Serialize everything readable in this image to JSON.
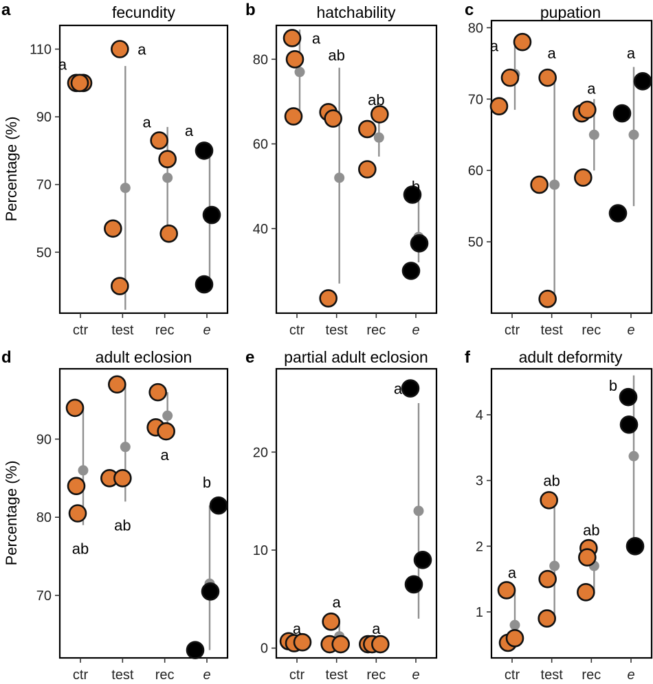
{
  "colors": {
    "point": "#E07A33",
    "exposed": "#000000",
    "mean": "#909090",
    "range": "#909090",
    "outline": "#111111"
  },
  "chart_data": [
    {
      "id": "a",
      "letter": "a",
      "title": "fecundity",
      "type": "scatter",
      "ylabel": "Percentage (%)",
      "ylim": [
        32,
        117
      ],
      "yticks": [
        50,
        70,
        90,
        110
      ],
      "categories": [
        "ctr",
        "test",
        "rec",
        "e"
      ],
      "groups": [
        {
          "category": "ctr",
          "points": [
            100,
            100,
            100
          ],
          "mean": 100,
          "range": [
            100,
            100
          ],
          "sig": "a",
          "sig_y": 105.5,
          "sig_side": "left"
        },
        {
          "category": "test",
          "points": [
            110,
            57,
            40
          ],
          "mean": 69,
          "range": [
            33,
            105
          ],
          "sig": "a",
          "sig_y": 110,
          "sig_side": "right"
        },
        {
          "category": "rec",
          "points": [
            83,
            77.5,
            55.5
          ],
          "mean": 72,
          "range": [
            57,
            87
          ],
          "sig": "a",
          "sig_y": 88.5,
          "sig_side": "left"
        },
        {
          "category": "e",
          "points": [
            80,
            61,
            40.5
          ],
          "mean": 60.5,
          "range": [
            40,
            80
          ],
          "sig": "a",
          "sig_y": 86,
          "sig_side": "left"
        }
      ]
    },
    {
      "id": "b",
      "letter": "b",
      "title": "hatchability",
      "type": "scatter",
      "ylabel": "",
      "ylim": [
        20,
        88
      ],
      "yticks": [
        40,
        60,
        80
      ],
      "categories": [
        "ctr",
        "test",
        "rec",
        "e"
      ],
      "groups": [
        {
          "category": "ctr",
          "points": [
            85,
            80,
            66.5
          ],
          "mean": 77,
          "range": [
            67,
            87
          ],
          "sig": "a",
          "sig_y": 85,
          "sig_side": "right"
        },
        {
          "category": "test",
          "points": [
            67.5,
            66,
            23.5
          ],
          "mean": 52,
          "range": [
            27,
            78
          ],
          "sig": "ab",
          "sig_y": 81,
          "sig_side": "center"
        },
        {
          "category": "rec",
          "points": [
            63.5,
            67,
            54
          ],
          "mean": 61.5,
          "range": [
            57,
            66
          ],
          "sig": "ab",
          "sig_y": 70.5,
          "sig_side": "center"
        },
        {
          "category": "e",
          "points": [
            48,
            36.5,
            30
          ],
          "mean": 38,
          "range": [
            32,
            47
          ],
          "sig": "b",
          "sig_y": 50,
          "sig_side": "center"
        }
      ]
    },
    {
      "id": "c",
      "letter": "c",
      "title": "pupation",
      "type": "scatter",
      "ylabel": "",
      "ylim": [
        40,
        81
      ],
      "yticks": [
        50,
        60,
        70,
        80
      ],
      "categories": [
        "ctr",
        "test",
        "rec",
        "e"
      ],
      "groups": [
        {
          "category": "ctr",
          "points": [
            69,
            73,
            78
          ],
          "mean": 73.5,
          "range": [
            68.5,
            78.5
          ],
          "sig": "a",
          "sig_y": 77.5,
          "sig_side": "left"
        },
        {
          "category": "test",
          "points": [
            73,
            58,
            42
          ],
          "mean": 58,
          "range": [
            42,
            73
          ],
          "sig": "a",
          "sig_y": 76.5,
          "sig_side": "center"
        },
        {
          "category": "rec",
          "points": [
            68,
            68.5,
            59
          ],
          "mean": 65,
          "range": [
            60,
            70
          ],
          "sig": "a",
          "sig_y": 71.5,
          "sig_side": "center"
        },
        {
          "category": "e",
          "points": [
            68,
            72.5,
            54
          ],
          "mean": 65,
          "range": [
            55,
            74.5
          ],
          "sig": "a",
          "sig_y": 76.5,
          "sig_side": "center"
        }
      ]
    },
    {
      "id": "d",
      "letter": "d",
      "title": "adult eclosion",
      "type": "scatter",
      "ylabel": "Percentage (%)",
      "ylim": [
        62,
        99
      ],
      "yticks": [
        70,
        80,
        90
      ],
      "categories": [
        "ctr",
        "test",
        "rec",
        "e"
      ],
      "groups": [
        {
          "category": "ctr",
          "points": [
            94,
            84,
            80.5
          ],
          "mean": 86,
          "range": [
            79,
            94
          ],
          "sig": "ab",
          "sig_y": 76,
          "sig_side": "center"
        },
        {
          "category": "test",
          "points": [
            97,
            85,
            85
          ],
          "mean": 89,
          "range": [
            82,
            97
          ],
          "sig": "ab",
          "sig_y": 79,
          "sig_side": "center"
        },
        {
          "category": "rec",
          "points": [
            96,
            91.5,
            91
          ],
          "mean": 93,
          "range": [
            91,
            96
          ],
          "sig": "a",
          "sig_y": 88,
          "sig_side": "center"
        },
        {
          "category": "e",
          "points": [
            81.5,
            70.5,
            63
          ],
          "mean": 71.5,
          "range": [
            63,
            81.5
          ],
          "sig": "b",
          "sig_y": 84.5,
          "sig_side": "center"
        }
      ]
    },
    {
      "id": "e",
      "letter": "e",
      "title": "partial adult eclosion",
      "type": "scatter",
      "ylabel": "",
      "ylim": [
        -1,
        28.5
      ],
      "yticks": [
        0,
        10,
        20
      ],
      "categories": [
        "ctr",
        "test",
        "rec",
        "e"
      ],
      "groups": [
        {
          "category": "ctr",
          "points": [
            0.7,
            0.5,
            0.6
          ],
          "mean": 0.6,
          "range": [
            0.3,
            1.0
          ],
          "sig": "a",
          "sig_y": 2.0,
          "sig_side": "center"
        },
        {
          "category": "test",
          "points": [
            2.7,
            0.4,
            0.4
          ],
          "mean": 1.2,
          "range": [
            0.3,
            2.7
          ],
          "sig": "a",
          "sig_y": 4.7,
          "sig_side": "center"
        },
        {
          "category": "rec",
          "points": [
            0.4,
            0.4,
            0.4
          ],
          "mean": 0.4,
          "range": [
            0.3,
            0.6
          ],
          "sig": "a",
          "sig_y": 2.0,
          "sig_side": "center"
        },
        {
          "category": "e",
          "points": [
            26.5,
            9,
            6.5
          ],
          "mean": 14,
          "range": [
            3,
            25
          ],
          "sig": "a",
          "sig_y": 26.5,
          "sig_side": "left"
        }
      ]
    },
    {
      "id": "f",
      "letter": "f",
      "title": "adult deformity",
      "type": "scatter",
      "ylabel": "",
      "ylim": [
        0.3,
        4.7
      ],
      "yticks": [
        1,
        2,
        3,
        4
      ],
      "categories": [
        "ctr",
        "test",
        "rec",
        "e"
      ],
      "groups": [
        {
          "category": "ctr",
          "points": [
            1.33,
            0.53,
            0.6
          ],
          "mean": 0.8,
          "range": [
            0.5,
            1.33
          ],
          "sig": "a",
          "sig_y": 1.6,
          "sig_side": "center"
        },
        {
          "category": "test",
          "points": [
            2.7,
            1.5,
            0.9
          ],
          "mean": 1.7,
          "range": [
            0.9,
            2.7
          ],
          "sig": "ab",
          "sig_y": 3.0,
          "sig_side": "center"
        },
        {
          "category": "rec",
          "points": [
            1.97,
            1.83,
            1.3
          ],
          "mean": 1.7,
          "range": [
            1.3,
            2.0
          ],
          "sig": "ab",
          "sig_y": 2.25,
          "sig_side": "center"
        },
        {
          "category": "e",
          "points": [
            4.27,
            3.85,
            2.0
          ],
          "mean": 3.37,
          "range": [
            2.1,
            4.6
          ],
          "sig": "b",
          "sig_y": 4.45,
          "sig_side": "left"
        }
      ]
    }
  ]
}
